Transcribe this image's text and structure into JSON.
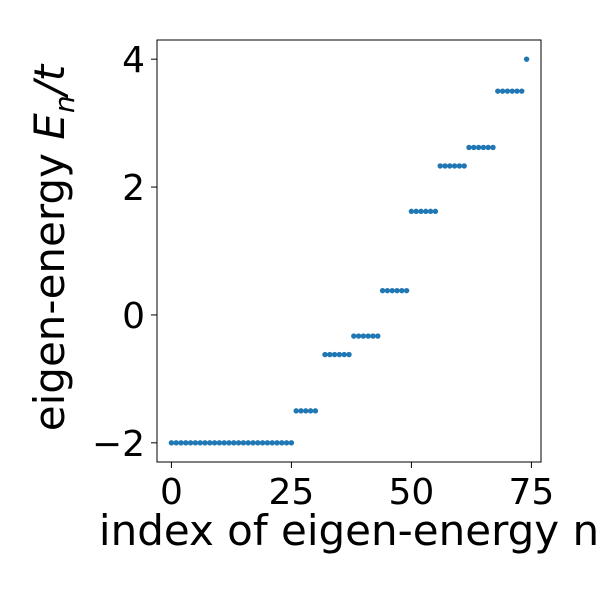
{
  "chart_data": {
    "type": "scatter",
    "xlabel": "index of eigen-energy n",
    "ylabel_main": "eigen-energy ",
    "ylabel_E": "E",
    "ylabel_sub": "n",
    "ylabel_tail": "/t",
    "xlim": [
      -3,
      77
    ],
    "ylim": [
      -2.3,
      4.3
    ],
    "xticks": [
      0,
      25,
      50,
      75
    ],
    "xtick_labels": [
      "0",
      "25",
      "50",
      "75"
    ],
    "yticks": [
      -2,
      0,
      2,
      4
    ],
    "ytick_labels": [
      "−2",
      "0",
      "2",
      "4"
    ],
    "grid": false,
    "marker_color": "#1f77b4",
    "series": [
      {
        "x": [
          0,
          1,
          2,
          3,
          4,
          5,
          6,
          7,
          8,
          9,
          10,
          11,
          12,
          13,
          14,
          15,
          16,
          17,
          18,
          19,
          20,
          21,
          22,
          23,
          24,
          25,
          26,
          27,
          28,
          29,
          30,
          32,
          33,
          34,
          35,
          36,
          37,
          38,
          39,
          40,
          41,
          42,
          43,
          44,
          45,
          46,
          47,
          48,
          49,
          50,
          51,
          52,
          53,
          54,
          55,
          56,
          57,
          58,
          59,
          60,
          61,
          62,
          63,
          64,
          65,
          66,
          67,
          68,
          69,
          70,
          71,
          72,
          73,
          74
        ],
        "y": [
          -2,
          -2,
          -2,
          -2,
          -2,
          -2,
          -2,
          -2,
          -2,
          -2,
          -2,
          -2,
          -2,
          -2,
          -2,
          -2,
          -2,
          -2,
          -2,
          -2,
          -2,
          -2,
          -2,
          -2,
          -2,
          -2,
          -1.5,
          -1.5,
          -1.5,
          -1.5,
          -1.5,
          -0.62,
          -0.62,
          -0.62,
          -0.62,
          -0.62,
          -0.62,
          -0.33,
          -0.33,
          -0.33,
          -0.33,
          -0.33,
          -0.33,
          0.38,
          0.38,
          0.38,
          0.38,
          0.38,
          0.38,
          1.62,
          1.62,
          1.62,
          1.62,
          1.62,
          1.62,
          2.33,
          2.33,
          2.33,
          2.33,
          2.33,
          2.33,
          2.62,
          2.62,
          2.62,
          2.62,
          2.62,
          2.62,
          3.5,
          3.5,
          3.5,
          3.5,
          3.5,
          3.5,
          4.0
        ]
      }
    ]
  }
}
